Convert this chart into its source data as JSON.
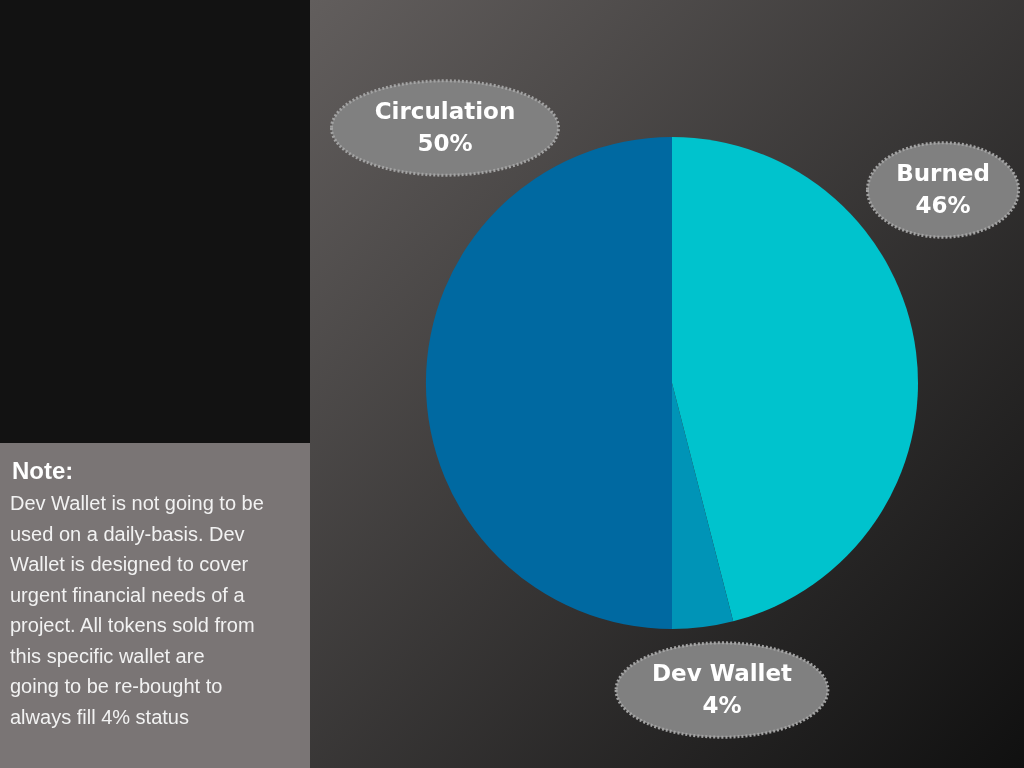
{
  "chart_data": {
    "type": "pie",
    "categories": [
      "Burned",
      "Dev Wallet",
      "Circulation"
    ],
    "values": [
      46,
      4,
      50
    ],
    "colors": [
      "#00c3cd",
      "#0094b7",
      "#0069a1"
    ],
    "value_labels": [
      "46%",
      "4%",
      "50%"
    ],
    "annotations": [
      "Note:",
      "Dev Wallet is not going to be used on a daily-basis. Dev Wallet is designed to cover urgent financial needs of a project. All tokens sold from this specific wallet are going to be re-bought to always fill 4% status"
    ]
  }
}
